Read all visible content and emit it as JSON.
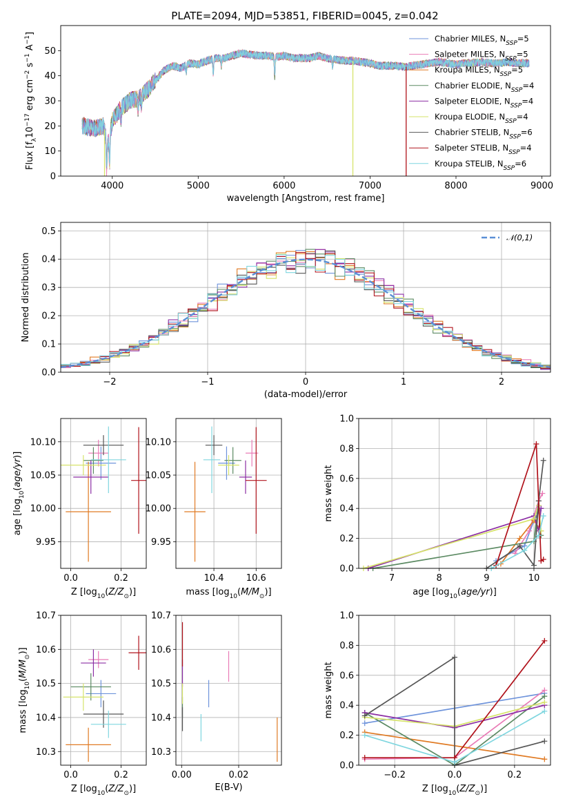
{
  "figure_title": "PLATE=2094, MJD=53851, FIBERID=0045, z=0.042",
  "colors": {
    "Chabrier MILES": "#6e93db",
    "Salpeter MILES": "#e97bb6",
    "Kroupa MILES": "#e07a23",
    "Chabrier ELODIE": "#5b8a62",
    "Salpeter ELODIE": "#8b2da3",
    "Kroupa ELODIE": "#d6e36a",
    "Chabrier STELIB": "#555555",
    "Salpeter STELIB": "#b0121b",
    "Kroupa STELIB": "#7fd6df"
  },
  "chart_data": [
    {
      "id": "spectrum",
      "type": "line",
      "xlabel": "wavelength [Angstrom, rest frame]",
      "ylabel": "Flux [f_λ 10^-17 erg cm^-2 s^-1 A^-1]",
      "xlim": [
        3400,
        9100
      ],
      "ylim": [
        0,
        60
      ],
      "xticks": [
        4000,
        5000,
        6000,
        7000,
        8000,
        9000
      ],
      "yticks": [
        0,
        10,
        20,
        30,
        40,
        50
      ],
      "grid": false,
      "legend_position": "top-right",
      "legend": [
        {
          "name": "Chabrier MILES",
          "sub": "SSP",
          "value": "5"
        },
        {
          "name": "Salpeter MILES",
          "sub": "SSP",
          "value": "5"
        },
        {
          "name": "Kroupa MILES",
          "sub": "SSP",
          "value": "5"
        },
        {
          "name": "Chabrier ELODIE",
          "sub": "SSP",
          "value": "4"
        },
        {
          "name": "Salpeter ELODIE",
          "sub": "SSP",
          "value": "4"
        },
        {
          "name": "Kroupa ELODIE",
          "sub": "SSP",
          "value": "4"
        },
        {
          "name": "Chabrier STELIB",
          "sub": "SSP",
          "value": "6"
        },
        {
          "name": "Salpeter STELIB",
          "sub": "SSP",
          "value": "4"
        },
        {
          "name": "Kroupa STELIB",
          "sub": "SSP",
          "value": "6"
        }
      ],
      "continuum": [
        [
          3650,
          20
        ],
        [
          3800,
          19
        ],
        [
          3900,
          20
        ],
        [
          3950,
          13
        ],
        [
          4000,
          22
        ],
        [
          4100,
          27
        ],
        [
          4200,
          30
        ],
        [
          4300,
          31
        ],
        [
          4400,
          34
        ],
        [
          4500,
          38
        ],
        [
          4600,
          42
        ],
        [
          4700,
          44
        ],
        [
          4800,
          43
        ],
        [
          4900,
          45
        ],
        [
          5000,
          44.5
        ],
        [
          5100,
          46
        ],
        [
          5200,
          47
        ],
        [
          5300,
          47
        ],
        [
          5400,
          48
        ],
        [
          5500,
          49
        ],
        [
          5600,
          48.5
        ],
        [
          5700,
          48
        ],
        [
          5800,
          48
        ],
        [
          5900,
          47.5
        ],
        [
          6000,
          48
        ],
        [
          6100,
          47
        ],
        [
          6200,
          47
        ],
        [
          6300,
          47
        ],
        [
          6400,
          48
        ],
        [
          6500,
          47
        ],
        [
          6600,
          46.5
        ],
        [
          6700,
          46
        ],
        [
          6800,
          46
        ],
        [
          6900,
          45.5
        ],
        [
          7000,
          45
        ],
        [
          7100,
          44
        ],
        [
          7200,
          44
        ],
        [
          7300,
          44
        ],
        [
          7400,
          43.5
        ],
        [
          7500,
          44
        ],
        [
          7600,
          44.5
        ],
        [
          7700,
          45
        ],
        [
          7800,
          45.5
        ],
        [
          7900,
          45
        ],
        [
          8000,
          44.5
        ],
        [
          8100,
          45
        ],
        [
          8200,
          45
        ],
        [
          8300,
          45.5
        ],
        [
          8400,
          45
        ],
        [
          8500,
          45
        ],
        [
          8600,
          45.5
        ],
        [
          8700,
          45
        ],
        [
          8800,
          45
        ],
        [
          8850,
          45
        ]
      ],
      "absorption_lines": [
        [
          3934,
          12
        ],
        [
          3969,
          12
        ],
        [
          4102,
          4
        ],
        [
          4300,
          5
        ],
        [
          4340,
          4
        ],
        [
          4861,
          3
        ],
        [
          5175,
          6
        ],
        [
          5270,
          3
        ],
        [
          5890,
          8
        ],
        [
          6563,
          3
        ]
      ],
      "spikes": [
        {
          "x": 3910,
          "color": "Kroupa ELODIE"
        },
        {
          "x": 6800,
          "color": "Kroupa ELODIE"
        },
        {
          "x": 7420,
          "color": "Salpeter STELIB"
        }
      ]
    },
    {
      "id": "residuals",
      "type": "step",
      "xlabel": "(data-model)/error",
      "ylabel": "Normed distribution",
      "xlim": [
        -2.5,
        2.5
      ],
      "ylim": [
        0,
        0.53
      ],
      "xticks": [
        -2,
        -1,
        0,
        1,
        2
      ],
      "yticks": [
        0.0,
        0.1,
        0.2,
        0.3,
        0.4,
        0.5
      ],
      "grid": true,
      "legend_position": "top-right",
      "reference": {
        "name": "𝒩(0,1)",
        "mean": 0,
        "sigma": 1,
        "color": "#5a8fd6"
      },
      "bin_width": 0.1
    },
    {
      "id": "age_vs_Z",
      "type": "errorbar",
      "xlabel": "Z [log10(Z/Z⊙)]",
      "ylabel": "age  [log10(age/yr)]",
      "xlim": [
        -0.04,
        0.3
      ],
      "ylim": [
        9.91,
        10.135
      ],
      "xticks": [
        0.0,
        0.2
      ],
      "yticks": [
        9.95,
        10.0,
        10.05,
        10.1
      ],
      "grid": true,
      "points": [
        {
          "model": "Chabrier MILES",
          "x": 0.12,
          "y": 10.068,
          "xerr": 0.06,
          "yerr": 0.025
        },
        {
          "model": "Salpeter MILES",
          "x": 0.11,
          "y": 10.083,
          "xerr": 0.04,
          "yerr": 0.02
        },
        {
          "model": "Kroupa MILES",
          "x": 0.07,
          "y": 9.995,
          "xerr": 0.09,
          "yerr": 0.075
        },
        {
          "model": "Chabrier ELODIE",
          "x": 0.09,
          "y": 10.072,
          "xerr": 0.04,
          "yerr": 0.02
        },
        {
          "model": "Salpeter ELODIE",
          "x": 0.08,
          "y": 10.047,
          "xerr": 0.07,
          "yerr": 0.025
        },
        {
          "model": "Kroupa ELODIE",
          "x": 0.05,
          "y": 10.065,
          "xerr": 0.09,
          "yerr": 0.015
        },
        {
          "model": "Chabrier STELIB",
          "x": 0.13,
          "y": 10.095,
          "xerr": 0.08,
          "yerr": 0.015
        },
        {
          "model": "Salpeter STELIB",
          "x": 0.27,
          "y": 10.042,
          "xerr": 0.03,
          "yerr": 0.08
        },
        {
          "model": "Kroupa STELIB",
          "x": 0.15,
          "y": 10.073,
          "xerr": 0.07,
          "yerr": 0.05
        }
      ]
    },
    {
      "id": "age_vs_mass",
      "type": "errorbar",
      "xlabel": "mass [log10(M/M⊙)]",
      "ylabel": "",
      "xlim": [
        10.22,
        10.72
      ],
      "ylim": [
        9.91,
        10.135
      ],
      "xticks": [
        10.4,
        10.6
      ],
      "yticks": [
        9.95,
        10.0,
        10.05,
        10.1
      ],
      "grid": true,
      "points": [
        {
          "model": "Chabrier MILES",
          "x": 10.46,
          "y": 10.068,
          "xerr": 0.04,
          "yerr": 0.025
        },
        {
          "model": "Salpeter MILES",
          "x": 10.58,
          "y": 10.083,
          "xerr": 0.03,
          "yerr": 0.02
        },
        {
          "model": "Kroupa MILES",
          "x": 10.31,
          "y": 9.995,
          "xerr": 0.05,
          "yerr": 0.075
        },
        {
          "model": "Chabrier ELODIE",
          "x": 10.49,
          "y": 10.072,
          "xerr": 0.04,
          "yerr": 0.02
        },
        {
          "model": "Salpeter ELODIE",
          "x": 10.55,
          "y": 10.047,
          "xerr": 0.03,
          "yerr": 0.025
        },
        {
          "model": "Kroupa ELODIE",
          "x": 10.47,
          "y": 10.065,
          "xerr": 0.05,
          "yerr": 0.015
        },
        {
          "model": "Chabrier STELIB",
          "x": 10.4,
          "y": 10.095,
          "xerr": 0.04,
          "yerr": 0.015
        },
        {
          "model": "Salpeter STELIB",
          "x": 10.6,
          "y": 10.042,
          "xerr": 0.05,
          "yerr": 0.08
        },
        {
          "model": "Kroupa STELIB",
          "x": 10.39,
          "y": 10.073,
          "xerr": 0.04,
          "yerr": 0.05
        }
      ]
    },
    {
      "id": "weight_vs_age",
      "type": "line",
      "xlabel": "age  [log10(age/yr)]",
      "ylabel": "mass weight",
      "xlim": [
        6.3,
        10.35
      ],
      "ylim": [
        0,
        1.0
      ],
      "xticks": [
        7,
        8,
        9,
        10
      ],
      "yticks": [
        0.0,
        0.2,
        0.4,
        0.6,
        0.8,
        1.0
      ],
      "grid": true,
      "series": [
        {
          "model": "Chabrier MILES",
          "x": [
            9.2,
            9.8,
            10.0,
            10.15
          ],
          "y": [
            0.05,
            0.15,
            0.32,
            0.4
          ]
        },
        {
          "model": "Salpeter MILES",
          "x": [
            9.6,
            9.9,
            10.1,
            10.18
          ],
          "y": [
            0.1,
            0.25,
            0.45,
            0.5
          ]
        },
        {
          "model": "Kroupa MILES",
          "x": [
            9.3,
            9.7,
            10.0,
            10.15
          ],
          "y": [
            0.03,
            0.2,
            0.32,
            0.25
          ]
        },
        {
          "model": "Chabrier ELODIE",
          "x": [
            6.6,
            10.0,
            10.1,
            10.15
          ],
          "y": [
            0.0,
            0.18,
            0.45,
            0.22
          ]
        },
        {
          "model": "Salpeter ELODIE",
          "x": [
            6.5,
            10.0,
            10.1,
            10.15
          ],
          "y": [
            0.0,
            0.35,
            0.25,
            0.4
          ]
        },
        {
          "model": "Kroupa ELODIE",
          "x": [
            6.4,
            10.0,
            10.1,
            10.15
          ],
          "y": [
            0.0,
            0.33,
            0.42,
            0.25
          ]
        },
        {
          "model": "Chabrier STELIB",
          "x": [
            9.0,
            9.7,
            10.0,
            10.1,
            10.2
          ],
          "y": [
            0.0,
            0.15,
            0.02,
            0.45,
            0.72
          ]
        },
        {
          "model": "Salpeter STELIB",
          "x": [
            9.2,
            10.05,
            10.15,
            10.2
          ],
          "y": [
            0.02,
            0.83,
            0.05,
            0.06
          ]
        },
        {
          "model": "Kroupa STELIB",
          "x": [
            9.1,
            9.8,
            10.1,
            10.2
          ],
          "y": [
            0.0,
            0.12,
            0.22,
            0.35
          ]
        }
      ]
    },
    {
      "id": "mass_vs_Z",
      "type": "errorbar",
      "xlabel": "Z [log10(Z/Z⊙)]",
      "ylabel": "mass [log10(M/M⊙)]",
      "xlim": [
        -0.04,
        0.3
      ],
      "ylim": [
        10.26,
        10.7
      ],
      "xticks": [
        0.0,
        0.2
      ],
      "yticks": [
        10.3,
        10.4,
        10.5,
        10.6,
        10.7
      ],
      "grid": true,
      "points": [
        {
          "model": "Chabrier MILES",
          "x": 0.12,
          "y": 10.47,
          "xerr": 0.06,
          "yerr": 0.04
        },
        {
          "model": "Salpeter MILES",
          "x": 0.11,
          "y": 10.57,
          "xerr": 0.04,
          "yerr": 0.025
        },
        {
          "model": "Kroupa MILES",
          "x": 0.07,
          "y": 10.32,
          "xerr": 0.09,
          "yerr": 0.05
        },
        {
          "model": "Chabrier ELODIE",
          "x": 0.08,
          "y": 10.49,
          "xerr": 0.08,
          "yerr": 0.04
        },
        {
          "model": "Salpeter ELODIE",
          "x": 0.09,
          "y": 10.56,
          "xerr": 0.05,
          "yerr": 0.04
        },
        {
          "model": "Kroupa ELODIE",
          "x": 0.05,
          "y": 10.46,
          "xerr": 0.08,
          "yerr": 0.04
        },
        {
          "model": "Chabrier STELIB",
          "x": 0.13,
          "y": 10.41,
          "xerr": 0.08,
          "yerr": 0.04
        },
        {
          "model": "Salpeter STELIB",
          "x": 0.27,
          "y": 10.59,
          "xerr": 0.04,
          "yerr": 0.05
        },
        {
          "model": "Kroupa STELIB",
          "x": 0.15,
          "y": 10.38,
          "xerr": 0.07,
          "yerr": 0.04
        }
      ]
    },
    {
      "id": "mass_vs_ebv",
      "type": "errorbar",
      "xlabel": "E(B-V)",
      "ylabel": "",
      "xlim": [
        -0.002,
        0.035
      ],
      "ylim": [
        10.26,
        10.7
      ],
      "xticks": [
        0.0,
        0.02
      ],
      "yticks": [
        10.3,
        10.4,
        10.5,
        10.6,
        10.7
      ],
      "xtick_format": "2",
      "grid": true,
      "points": [
        {
          "model": "Chabrier MILES",
          "x": 0.0095,
          "y": 10.47,
          "xerr": 0,
          "yerr": 0.04
        },
        {
          "model": "Salpeter MILES",
          "x": 0.0165,
          "y": 10.55,
          "xerr": 0,
          "yerr": 0.045
        },
        {
          "model": "Kroupa MILES",
          "x": 0.0335,
          "y": 10.335,
          "xerr": 0,
          "yerr": 0.065
        },
        {
          "model": "Chabrier ELODIE",
          "x": 0.0003,
          "y": 10.43,
          "xerr": 0,
          "yerr": 0.03
        },
        {
          "model": "Salpeter ELODIE",
          "x": 0.0003,
          "y": 10.53,
          "xerr": 0,
          "yerr": 0.04
        },
        {
          "model": "Kroupa ELODIE",
          "x": 0.0003,
          "y": 10.47,
          "xerr": 0,
          "yerr": 0.03
        },
        {
          "model": "Chabrier STELIB",
          "x": 0.0003,
          "y": 10.395,
          "xerr": 0,
          "yerr": 0.035
        },
        {
          "model": "Salpeter STELIB",
          "x": 0.0003,
          "y": 10.615,
          "xerr": 0,
          "yerr": 0.065
        },
        {
          "model": "Kroupa STELIB",
          "x": 0.0068,
          "y": 10.37,
          "xerr": 0,
          "yerr": 0.04
        }
      ]
    },
    {
      "id": "weight_vs_Z",
      "type": "line",
      "xlabel": "Z [log10(Z/Z⊙)]",
      "ylabel": "mass weight",
      "xlim": [
        -0.32,
        0.32
      ],
      "ylim": [
        0,
        1.0
      ],
      "xticks": [
        -0.2,
        0.0,
        0.2
      ],
      "yticks": [
        0.0,
        0.2,
        0.4,
        0.6,
        0.8,
        1.0
      ],
      "grid": true,
      "series": [
        {
          "model": "Chabrier MILES",
          "x": [
            -0.3,
            0.3
          ],
          "y": [
            0.28,
            0.48
          ]
        },
        {
          "model": "Salpeter MILES",
          "x": [
            -0.3,
            0.0,
            0.3
          ],
          "y": [
            0.04,
            0.05,
            0.5
          ]
        },
        {
          "model": "Kroupa MILES",
          "x": [
            -0.3,
            0.3
          ],
          "y": [
            0.22,
            0.04
          ]
        },
        {
          "model": "Chabrier ELODIE",
          "x": [
            -0.3,
            0.0,
            0.3
          ],
          "y": [
            0.35,
            0.0,
            0.46
          ]
        },
        {
          "model": "Salpeter ELODIE",
          "x": [
            -0.3,
            0.0,
            0.3
          ],
          "y": [
            0.35,
            0.25,
            0.4
          ]
        },
        {
          "model": "Kroupa ELODIE",
          "x": [
            -0.3,
            0.0,
            0.3
          ],
          "y": [
            0.32,
            0.26,
            0.42
          ]
        },
        {
          "model": "Chabrier STELIB",
          "x": [
            -0.3,
            0.0,
            0.0,
            0.3
          ],
          "y": [
            0.33,
            0.72,
            0.0,
            0.16
          ]
        },
        {
          "model": "Salpeter STELIB",
          "x": [
            -0.3,
            0.0,
            0.3
          ],
          "y": [
            0.05,
            0.05,
            0.83
          ]
        },
        {
          "model": "Kroupa STELIB",
          "x": [
            -0.3,
            0.0,
            0.3
          ],
          "y": [
            0.2,
            0.02,
            0.36
          ]
        }
      ]
    }
  ]
}
